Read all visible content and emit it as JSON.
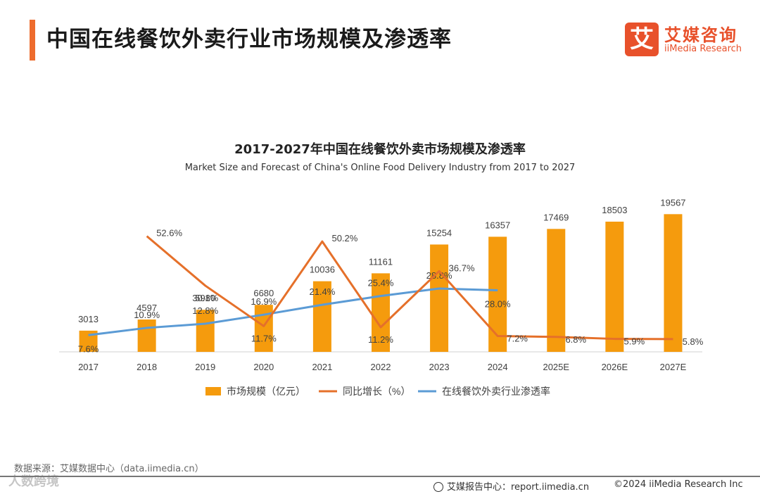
{
  "header": {
    "title": "中国在线餐饮外卖行业市场规模及渗透率",
    "logo_mark": "艾",
    "logo_cn": "艾媒咨询",
    "logo_en": "iiMedia Research"
  },
  "colors": {
    "accent": "#ee6c2d",
    "bar": "#f59b0d",
    "growth_line": "#e5702a",
    "penetration_line": "#5b9bd5"
  },
  "chart_data": {
    "type": "bar+line",
    "title": "2017-2027年中国在线餐饮外卖市场规模及渗透率",
    "subtitle": "Market Size and Forecast of China's Online Food Delivery Industry from 2017 to 2027",
    "categories": [
      "2017",
      "2018",
      "2019",
      "2020",
      "2021",
      "2022",
      "2023",
      "2024",
      "2025E",
      "2026E",
      "2027E"
    ],
    "ylim_bars": [
      0,
      25000
    ],
    "ylim_lines": [
      0,
      80
    ],
    "series": [
      {
        "name": "市场规模（亿元）",
        "type": "bar",
        "values": [
          3013,
          4597,
          5980,
          6680,
          10036,
          11161,
          15254,
          16357,
          17469,
          18503,
          19567
        ],
        "labels": [
          "3013",
          "4597",
          "5980",
          "6680",
          "10036",
          "11161",
          "15254",
          "16357",
          "17469",
          "18503",
          "19567"
        ]
      },
      {
        "name": "同比增长（%）",
        "type": "line",
        "values": [
          null,
          52.6,
          30.1,
          11.7,
          50.2,
          11.2,
          36.7,
          7.2,
          6.8,
          5.9,
          5.8
        ],
        "labels": [
          null,
          "52.6%",
          "30.1%",
          "11.7%",
          "50.2%",
          "11.2%",
          "36.7%",
          "7.2%",
          "6.8%",
          "5.9%",
          "5.8%"
        ]
      },
      {
        "name": "在线餐饮外卖行业渗透率",
        "type": "line",
        "values": [
          7.6,
          10.9,
          12.8,
          16.9,
          21.4,
          25.4,
          28.8,
          28.0,
          null,
          null,
          null
        ],
        "labels": [
          "7.6%",
          "10.9%",
          "12.8%",
          "16.9%",
          "21.4%",
          "25.4%",
          "28.8%",
          "28.0%",
          null,
          null,
          null
        ]
      }
    ]
  },
  "footer": {
    "source": "数据来源：艾媒数据中心（data.iimedia.cn）",
    "watermark": "人数跨境",
    "report": "艾媒报告中心：report.iimedia.cn",
    "copyright": "©2024  iiMedia Research  Inc"
  }
}
